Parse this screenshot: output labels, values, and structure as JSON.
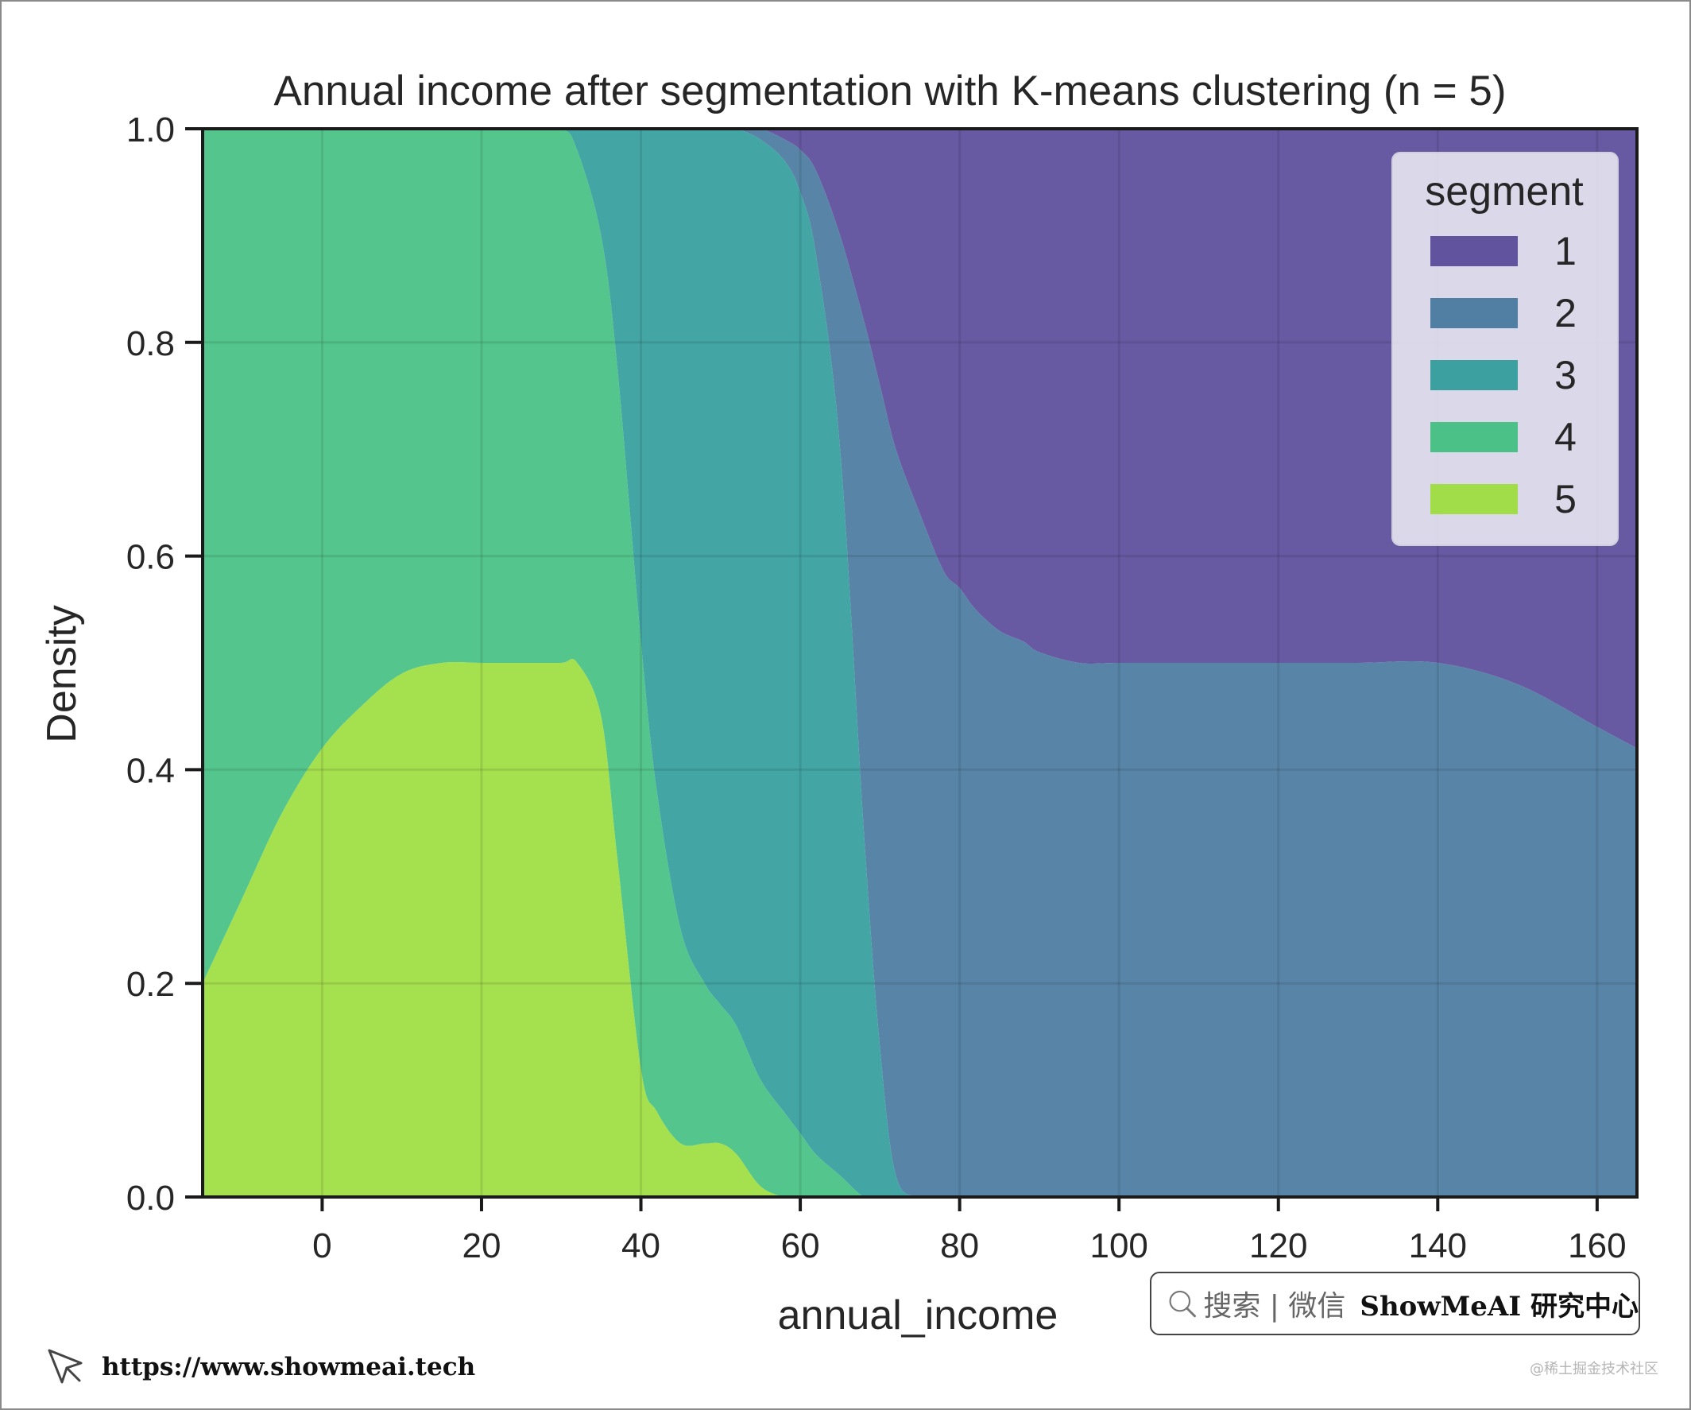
{
  "chart_data": {
    "type": "area",
    "title": "Annual income after segmentation with K-means clustering (n = 5)",
    "xlabel": "annual_income",
    "ylabel": "Density",
    "xlim": [
      -15,
      165
    ],
    "ylim": [
      0,
      1
    ],
    "xticks": [
      0,
      20,
      40,
      60,
      80,
      100,
      120,
      140,
      160
    ],
    "xtick_labels": [
      "0",
      "20",
      "40",
      "60",
      "80",
      "100",
      "120",
      "140",
      "160"
    ],
    "yticks": [
      0,
      0.2,
      0.4,
      0.6,
      0.8,
      1.0
    ],
    "ytick_labels": [
      "0.0",
      "0.2",
      "0.4",
      "0.6",
      "0.8",
      "1.0"
    ],
    "grid": true,
    "stacked": "fill",
    "legend": {
      "title": "segment",
      "placement": "top-right",
      "entries": [
        "1",
        "2",
        "3",
        "4",
        "5"
      ]
    },
    "x": [
      -15,
      -10,
      -5,
      0,
      5,
      10,
      15,
      20,
      25,
      30,
      32,
      35,
      37,
      40,
      42,
      45,
      48,
      50,
      52,
      55,
      58,
      60,
      62,
      65,
      68,
      70,
      72,
      75,
      78,
      80,
      82,
      85,
      88,
      90,
      95,
      100,
      110,
      120,
      130,
      140,
      150,
      160,
      165
    ],
    "series": [
      {
        "name": "1",
        "color": "#5b4c9a",
        "values": [
          0,
          0,
          0,
          0,
          0,
          0,
          0,
          0,
          0,
          0,
          0,
          0,
          0,
          0,
          0,
          0,
          0,
          0,
          0,
          0.0,
          0.01,
          0.02,
          0.04,
          0.1,
          0.18,
          0.24,
          0.3,
          0.36,
          0.41,
          0.43,
          0.45,
          0.47,
          0.48,
          0.49,
          0.5,
          0.5,
          0.5,
          0.5,
          0.5,
          0.5,
          0.52,
          0.56,
          0.58
        ]
      },
      {
        "name": "2",
        "color": "#4a7aa0",
        "values": [
          0,
          0,
          0,
          0,
          0,
          0,
          0,
          0,
          0,
          0,
          0,
          0,
          0,
          0,
          0,
          0,
          0,
          0,
          0.0,
          0.01,
          0.02,
          0.04,
          0.08,
          0.2,
          0.48,
          0.62,
          0.68,
          0.64,
          0.58,
          0.57,
          0.55,
          0.53,
          0.52,
          0.51,
          0.5,
          0.5,
          0.5,
          0.5,
          0.5,
          0.5,
          0.48,
          0.44,
          0.42
        ]
      },
      {
        "name": "3",
        "color": "#349d9d",
        "values": [
          0,
          0,
          0,
          0,
          0,
          0,
          0,
          0,
          0,
          0,
          0.02,
          0.1,
          0.22,
          0.48,
          0.62,
          0.75,
          0.8,
          0.82,
          0.84,
          0.88,
          0.9,
          0.89,
          0.85,
          0.68,
          0.34,
          0.14,
          0.02,
          0.0,
          0.0,
          0,
          0,
          0,
          0,
          0,
          0,
          0,
          0,
          0,
          0,
          0,
          0,
          0,
          0
        ]
      },
      {
        "name": "4",
        "color": "#45c082",
        "values": [
          0.8,
          0.72,
          0.64,
          0.58,
          0.54,
          0.51,
          0.5,
          0.5,
          0.5,
          0.5,
          0.48,
          0.45,
          0.46,
          0.4,
          0.3,
          0.2,
          0.15,
          0.13,
          0.12,
          0.1,
          0.08,
          0.06,
          0.04,
          0.02,
          0.0,
          0,
          0,
          0,
          0,
          0,
          0,
          0,
          0,
          0,
          0,
          0,
          0,
          0,
          0,
          0,
          0,
          0,
          0
        ]
      },
      {
        "name": "5",
        "color": "#9ddd40",
        "values": [
          0.2,
          0.28,
          0.36,
          0.42,
          0.46,
          0.49,
          0.5,
          0.5,
          0.5,
          0.5,
          0.5,
          0.45,
          0.32,
          0.12,
          0.08,
          0.05,
          0.05,
          0.05,
          0.04,
          0.01,
          0.0,
          0,
          0,
          0,
          0,
          0,
          0,
          0,
          0,
          0,
          0,
          0,
          0,
          0,
          0,
          0,
          0,
          0,
          0,
          0,
          0,
          0,
          0
        ]
      }
    ]
  },
  "search_box": {
    "text": "搜索 | 微信",
    "brand": "ShowMeAI 研究中心"
  },
  "footer": {
    "url": "https://www.showmeai.tech",
    "watermark": "@稀土掘金技术社区"
  }
}
